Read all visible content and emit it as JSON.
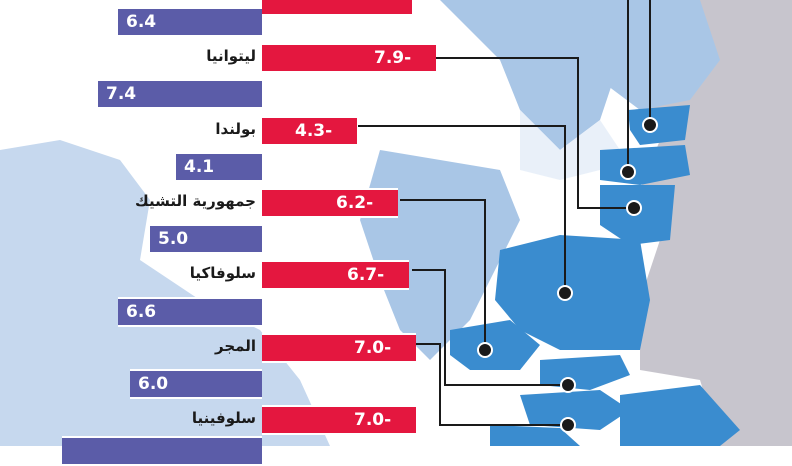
{
  "chart_data": {
    "type": "bar",
    "colors": {
      "positive": "#5b5ca8",
      "negative": "#e4173f",
      "land_highlight": "#3a8ccf",
      "land_light": "#a9c6e6",
      "land_other": "#c7c5cd",
      "leader": "#1a1a1a"
    },
    "rows": [
      {
        "value_label": "6.4",
        "value": 6.4,
        "sign": "positive"
      },
      {
        "country": "ليتوانيا",
        "value_label": "7.9-",
        "value": -7.9,
        "sign": "negative"
      },
      {
        "value_label": "7.4",
        "value": 7.4,
        "sign": "positive"
      },
      {
        "country": "بولندا",
        "value_label": "4.3-",
        "value": -4.3,
        "sign": "negative"
      },
      {
        "value_label": "4.1",
        "value": 4.1,
        "sign": "positive"
      },
      {
        "country": "جمهورية التشيك",
        "value_label": "6.2-",
        "value": -6.2,
        "sign": "negative"
      },
      {
        "value_label": "5.0",
        "value": 5.0,
        "sign": "positive"
      },
      {
        "country": "سلوفاكيا",
        "value_label": "6.7-",
        "value": -6.7,
        "sign": "negative"
      },
      {
        "value_label": "6.6",
        "value": 6.6,
        "sign": "positive"
      },
      {
        "country": "المجر",
        "value_label": "7.0-",
        "value": -7.0,
        "sign": "negative"
      },
      {
        "value_label": "6.0",
        "value": 6.0,
        "sign": "positive"
      },
      {
        "country": "سلوفينيا",
        "value_label": "7.0-",
        "value": -7.0,
        "sign": "negative"
      }
    ]
  }
}
